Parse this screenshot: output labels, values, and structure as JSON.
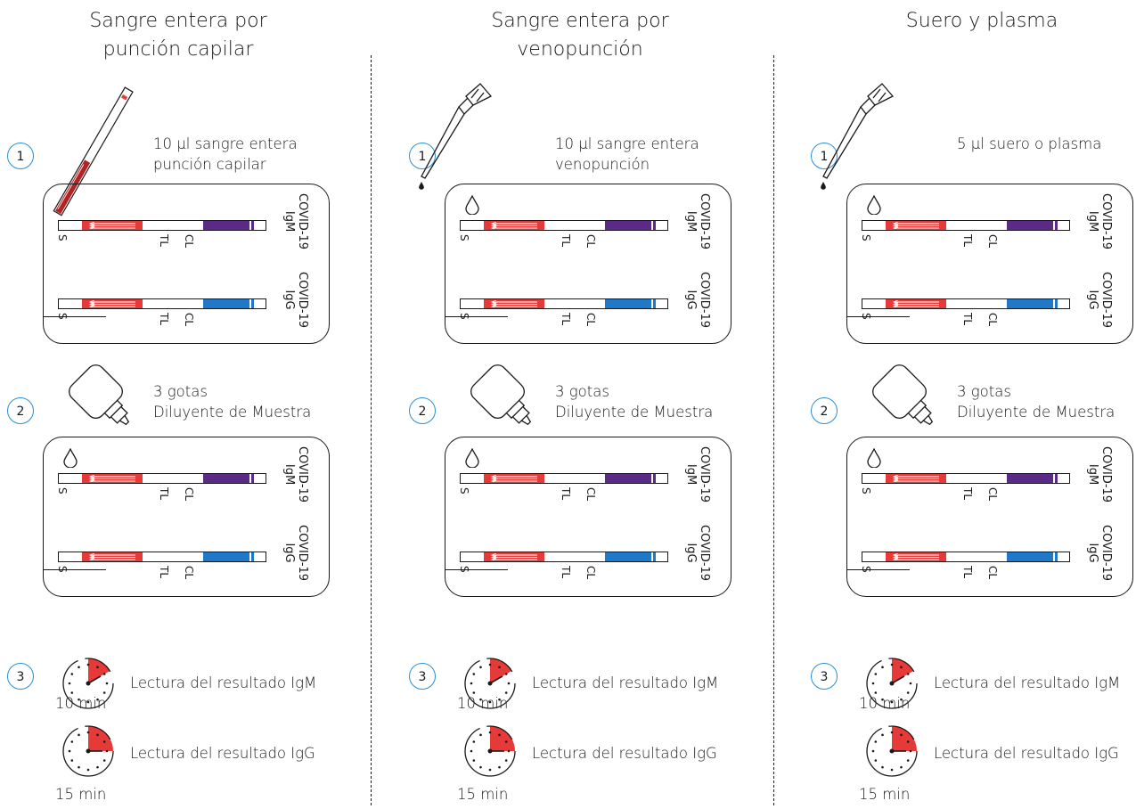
{
  "colors": {
    "red": "#e63a39",
    "igm": "#5b2a86",
    "igg": "#1f78c8",
    "circle": "#2a8fd6",
    "ink": "#1a1a1a"
  },
  "strip_labels": {
    "s": "S",
    "tl": "TL",
    "cl": "CL"
  },
  "cassette_labels": {
    "igm": "COVID-19\nIgM",
    "igg": "COVID-19\nIgG"
  },
  "columns": [
    {
      "title": "Sangre entera por\npunción capilar",
      "step1_num": "1",
      "step1_label": "10 µl sangre entera\npunción capilar",
      "step1_tool": "capillary-tube-icon",
      "step2_num": "2",
      "step2_label": "3 gotas\nDiluyente de Muestra",
      "step3_num": "3",
      "igm_read": "Lectura del resultado IgM",
      "igm_time": "10 min",
      "igg_read": "Lectura del resultado IgG",
      "igg_time": "15 min"
    },
    {
      "title": "Sangre entera por\nvenopunción",
      "step1_num": "1",
      "step1_label": "10 µl sangre entera\nvenopunción",
      "step1_tool": "pipette-icon",
      "step2_num": "2",
      "step2_label": "3 gotas\nDiluyente de Muestra",
      "step3_num": "3",
      "igm_read": "Lectura del resultado IgM",
      "igm_time": "10 min",
      "igg_read": "Lectura del resultado IgG",
      "igg_time": "15 min"
    },
    {
      "title": "Suero y plasma",
      "step1_num": "1",
      "step1_label": "5 µl suero o plasma",
      "step1_tool": "pipette-icon",
      "step2_num": "2",
      "step2_label": "3 gotas\nDiluyente de Muestra",
      "step3_num": "3",
      "igm_read": "Lectura del resultado IgM",
      "igm_time": "10 min",
      "igg_read": "Lectura del resultado IgG",
      "igg_time": "15 min"
    }
  ]
}
